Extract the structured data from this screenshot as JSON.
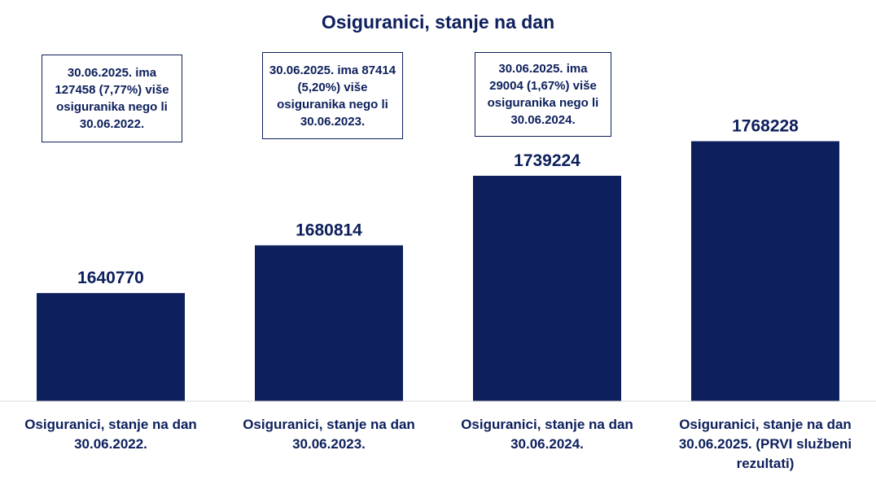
{
  "chart_data": {
    "type": "bar",
    "title": "Osiguranici, stanje na dan",
    "categories": [
      "Osiguranici, stanje na dan 30.06.2022.",
      "Osiguranici, stanje na dan 30.06.2023.",
      "Osiguranici, stanje na dan 30.06.2024.",
      "Osiguranici, stanje na dan 30.06.2025. (PRVI službeni rezultati)"
    ],
    "values": [
      1640770,
      1680814,
      1739224,
      1768228
    ],
    "data_labels": [
      "1640770",
      "1680814",
      "1739224",
      "1768228"
    ],
    "ylim": [
      1550000,
      1800000
    ],
    "bar_color": "#0d1f5c",
    "grid": false,
    "legend": "none"
  },
  "annotations": [
    "30.06.2025. ima 127458 (7,77%) više osiguranika nego li 30.06.2022.",
    "30.06.2025. ima 87414 (5,20%) više osiguranika nego li 30.06.2023.",
    "30.06.2025. ima 29004 (1,67%) više osiguranika nego li 30.06.2024."
  ]
}
